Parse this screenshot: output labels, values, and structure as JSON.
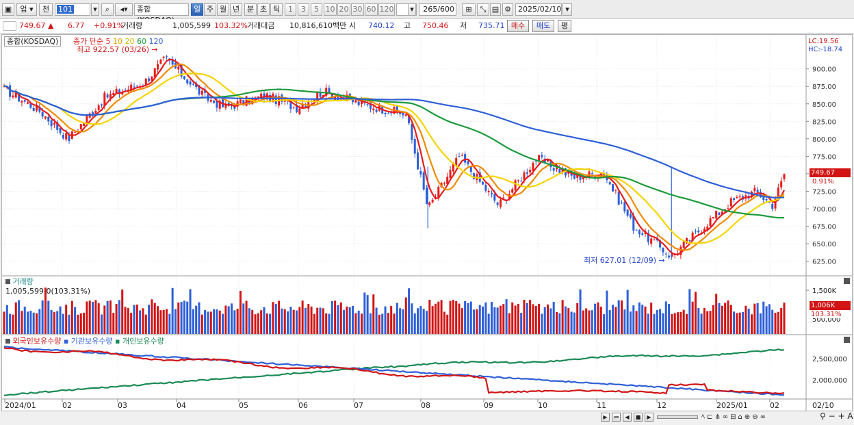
{
  "toolbar": {
    "market": "업",
    "prev": "전",
    "code": "101",
    "name": "종합(KOSDAQ)",
    "periods": [
      "일",
      "주",
      "월",
      "년",
      "분",
      "초",
      "틱"
    ],
    "active_period": "일",
    "intervals": [
      "1",
      "3",
      "5",
      "10",
      "20",
      "30",
      "60",
      "120"
    ],
    "count": "265",
    "count_total": "/600",
    "date": "2025/02/10"
  },
  "quote": {
    "price": "749.67",
    "change": "6.77",
    "change_pct": "+0.91%",
    "volume_label": "거래량",
    "volume": "1,005,599",
    "volume_pct": "103.32%",
    "amount_label": "거래대금",
    "amount": "10,816,610백만",
    "open_label": "시",
    "open": "740.12",
    "high_label": "고",
    "high": "750.46",
    "low_label": "저",
    "low": "735.71",
    "buy": "매수",
    "sell": "매도",
    "eval": "평"
  },
  "price_panel": {
    "name": "종합(KOSDAQ)",
    "legend_prefix": "종가 단순",
    "ma_periods": [
      "5",
      "10",
      "20",
      "60",
      "120"
    ],
    "ma_colors": [
      "#e81c1c",
      "#f08a00",
      "#f5d400",
      "#1a9a3a",
      "#2d5fd8"
    ],
    "high_note": "최고 922.57 (03/26)",
    "low_note": "최저 627.01 (12/09)",
    "lc": "LC:19.56",
    "hc": "HC:-18.74",
    "price_tag": "749.67",
    "pct_tag": "0.91%",
    "y_ticks": [
      "900.00",
      "875.00",
      "850.00",
      "825.00",
      "800.00",
      "775.00",
      "750.00",
      "725.00",
      "700.00",
      "675.00",
      "650.00",
      "625.00"
    ]
  },
  "volume_panel": {
    "name": "거래량",
    "value": "1,005,599.0(103.31%)",
    "y_tick": "1,500K",
    "y_tick2": "500,000",
    "tag": "1,006K",
    "tag_pct": "103.31%"
  },
  "holder_panel": {
    "legend": [
      "외국인보유수량",
      "기관보유수량",
      "개인보유수량"
    ],
    "legend_colors": [
      "#d21414",
      "#2d5fd8",
      "#1a8a55"
    ],
    "y_ticks": [
      "2,500,000",
      "2,000,000"
    ]
  },
  "x_axis": {
    "labels": [
      "2024/01",
      "02",
      "03",
      "04",
      "05",
      "06",
      "07",
      "08",
      "09",
      "10",
      "11",
      "12",
      "2025/01",
      "02"
    ],
    "last_date": "02/10"
  },
  "playback": {
    "controls": [
      "play-icon",
      "first-icon",
      "prev-icon",
      "stop-icon",
      "next-icon"
    ]
  },
  "chart_data": {
    "type": "candlestick",
    "y_range": [
      610,
      930
    ],
    "close_series": [
      {
        "x": "2024/01/02",
        "y": 870
      },
      {
        "x": "2024/01/20",
        "y": 840
      },
      {
        "x": "2024/02/05",
        "y": 800
      },
      {
        "x": "2024/02/25",
        "y": 860
      },
      {
        "x": "2024/03/15",
        "y": 880
      },
      {
        "x": "2024/03/26",
        "y": 915
      },
      {
        "x": "2024/04/15",
        "y": 860
      },
      {
        "x": "2024/04/25",
        "y": 845
      },
      {
        "x": "2024/05/15",
        "y": 862
      },
      {
        "x": "2024/06/01",
        "y": 845
      },
      {
        "x": "2024/06/15",
        "y": 868
      },
      {
        "x": "2024/07/05",
        "y": 850
      },
      {
        "x": "2024/07/25",
        "y": 835
      },
      {
        "x": "2024/08/05",
        "y": 700
      },
      {
        "x": "2024/08/20",
        "y": 775
      },
      {
        "x": "2024/09/10",
        "y": 705
      },
      {
        "x": "2024/10/01",
        "y": 772
      },
      {
        "x": "2024/10/20",
        "y": 745
      },
      {
        "x": "2024/11/05",
        "y": 752
      },
      {
        "x": "2024/11/20",
        "y": 675
      },
      {
        "x": "2024/12/09",
        "y": 632
      },
      {
        "x": "2024/12/27",
        "y": 680
      },
      {
        "x": "2025/01/10",
        "y": 710
      },
      {
        "x": "2025/01/24",
        "y": 725
      },
      {
        "x": "2025/02/03",
        "y": 705
      },
      {
        "x": "2025/02/10",
        "y": 749.67
      }
    ]
  }
}
